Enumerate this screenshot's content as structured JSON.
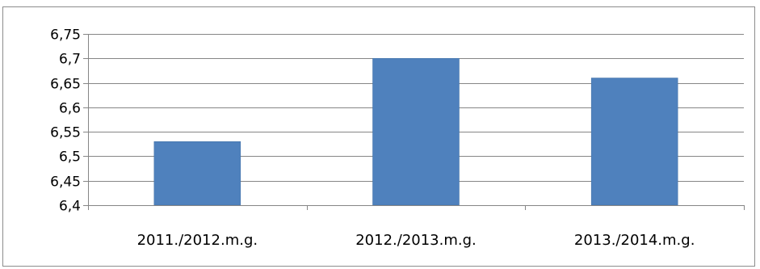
{
  "colors": {
    "bar": "#4f81bd",
    "bar_edge": "#3d6ea4",
    "gridline": "#868686",
    "axis": "#868686",
    "frame": "#8c8c8c"
  },
  "chart_data": {
    "type": "bar",
    "categories": [
      "2011./2012.m.g.",
      "2012./2013.m.g.",
      "2013./2014.m.g."
    ],
    "series": [
      {
        "values": [
          6.53,
          6.7,
          6.66
        ]
      }
    ],
    "ylim": [
      6.4,
      6.75
    ],
    "ytick_labels": [
      "6,4",
      "6,45",
      "6,5",
      "6,55",
      "6,6",
      "6,65",
      "6,7",
      "6,75"
    ],
    "grid": true,
    "legend": "none"
  }
}
